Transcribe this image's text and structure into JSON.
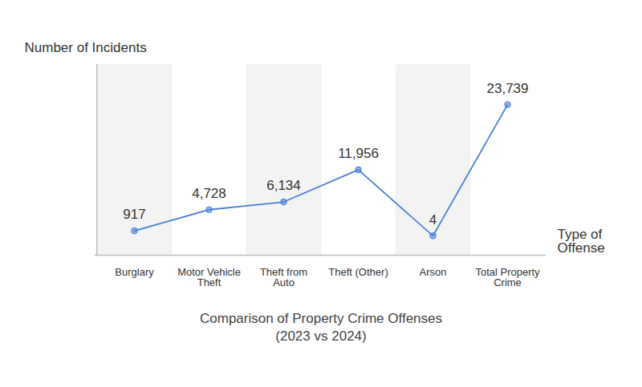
{
  "chart_data": {
    "type": "line",
    "title": "Comparison of Property Crime Offenses",
    "subtitle": "(2023 vs 2024)",
    "xlabel": "Type of Offense",
    "ylabel": "Number of Incidents",
    "categories": [
      "Burglary",
      "Motor Vehicle Theft",
      "Theft from Auto",
      "Theft (Other)",
      "Arson",
      "Total Property Crime"
    ],
    "values": [
      917,
      4728,
      6134,
      11956,
      4,
      23739
    ],
    "value_labels": [
      "917",
      "4,728",
      "6,134",
      "11,956",
      "4",
      "23,739"
    ],
    "data_labels": true,
    "color": "#4a7fd8",
    "marker": "circle",
    "ylim": [
      -3500,
      31000
    ],
    "tick_labels": "x",
    "grid": false
  }
}
